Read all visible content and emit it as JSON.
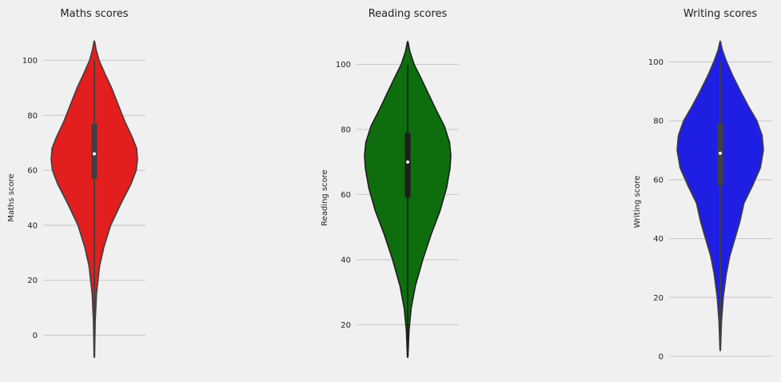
{
  "chart_data": [
    {
      "type": "violin",
      "title": "Maths scores",
      "ylabel": "Maths score",
      "xlabel": "",
      "yticks": [
        0,
        20,
        40,
        60,
        80,
        100
      ],
      "ylim": [
        -8,
        108
      ],
      "grid": true,
      "color": "#e31e1e",
      "outline": "#3f3f3f",
      "box": {
        "min": 0,
        "q1": 57,
        "median": 66,
        "q3": 77,
        "max": 100
      },
      "kde_extent": [
        -8,
        107
      ],
      "density": [
        [
          -8,
          0.005
        ],
        [
          5,
          0.02
        ],
        [
          15,
          0.05
        ],
        [
          25,
          0.12
        ],
        [
          32,
          0.22
        ],
        [
          40,
          0.38
        ],
        [
          48,
          0.62
        ],
        [
          55,
          0.85
        ],
        [
          60,
          0.97
        ],
        [
          64,
          1.0
        ],
        [
          68,
          0.98
        ],
        [
          72,
          0.88
        ],
        [
          78,
          0.7
        ],
        [
          84,
          0.55
        ],
        [
          90,
          0.4
        ],
        [
          95,
          0.25
        ],
        [
          100,
          0.11
        ],
        [
          104,
          0.04
        ],
        [
          107,
          0.005
        ]
      ]
    },
    {
      "type": "violin",
      "title": "Reading scores",
      "ylabel": "Reading score",
      "xlabel": "",
      "yticks": [
        20,
        40,
        60,
        80,
        100
      ],
      "ylim": [
        10,
        108
      ],
      "grid": true,
      "color": "#0e6e0e",
      "outline": "#1e1e1e",
      "box": {
        "min": 17,
        "q1": 59,
        "median": 70,
        "q3": 79,
        "max": 100
      },
      "kde_extent": [
        10,
        107
      ],
      "density": [
        [
          10,
          0.005
        ],
        [
          18,
          0.03
        ],
        [
          25,
          0.08
        ],
        [
          32,
          0.18
        ],
        [
          40,
          0.35
        ],
        [
          48,
          0.55
        ],
        [
          55,
          0.75
        ],
        [
          62,
          0.9
        ],
        [
          68,
          0.98
        ],
        [
          72,
          1.0
        ],
        [
          76,
          0.97
        ],
        [
          81,
          0.85
        ],
        [
          86,
          0.66
        ],
        [
          91,
          0.48
        ],
        [
          96,
          0.3
        ],
        [
          100,
          0.15
        ],
        [
          104,
          0.05
        ],
        [
          107,
          0.005
        ]
      ]
    },
    {
      "type": "violin",
      "title": "Writing scores",
      "ylabel": "Writing score",
      "xlabel": "",
      "yticks": [
        0,
        20,
        40,
        60,
        80,
        100
      ],
      "ylim": [
        -3,
        108
      ],
      "grid": true,
      "color": "#1f1fe3",
      "outline": "#3f3f3f",
      "box": {
        "min": 10,
        "q1": 58,
        "median": 69,
        "q3": 79,
        "max": 100
      },
      "kde_extent": [
        2,
        107
      ],
      "density": [
        [
          2,
          0.005
        ],
        [
          12,
          0.03
        ],
        [
          20,
          0.07
        ],
        [
          28,
          0.14
        ],
        [
          34,
          0.22
        ],
        [
          40,
          0.34
        ],
        [
          46,
          0.46
        ],
        [
          52,
          0.55
        ],
        [
          58,
          0.75
        ],
        [
          64,
          0.93
        ],
        [
          70,
          1.0
        ],
        [
          75,
          0.97
        ],
        [
          80,
          0.85
        ],
        [
          85,
          0.65
        ],
        [
          90,
          0.47
        ],
        [
          95,
          0.3
        ],
        [
          100,
          0.15
        ],
        [
          104,
          0.05
        ],
        [
          107,
          0.005
        ]
      ]
    }
  ]
}
